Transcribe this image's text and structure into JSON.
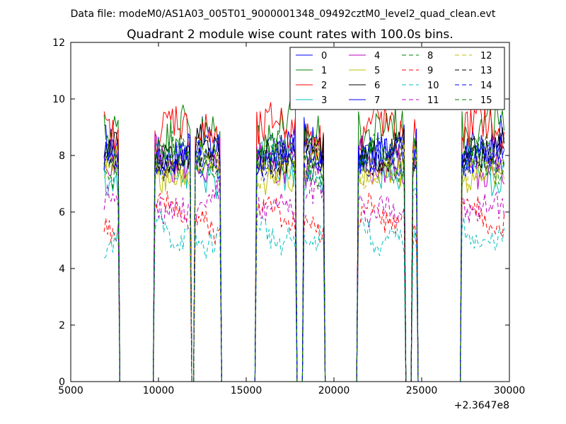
{
  "suptitle": "Data file: modeM0/AS1A03_005T01_9000001348_09492cztM0_level2_quad_clean.evt",
  "chart_data": {
    "type": "line",
    "title": "Quadrant 2 module wise count rates with 100.0s bins.",
    "xlabel": "",
    "ylabel": "",
    "x_offset_label": "+2.3647e8",
    "xlim": [
      5000,
      30000
    ],
    "ylim": [
      0,
      12
    ],
    "xticks": [
      5000,
      10000,
      15000,
      20000,
      25000,
      30000
    ],
    "yticks": [
      0,
      2,
      4,
      6,
      8,
      10,
      12
    ],
    "grid": false,
    "legend_position": "top-right",
    "segments": [
      [
        6900,
        7700
      ],
      [
        9800,
        11800
      ],
      [
        12100,
        13500
      ],
      [
        15600,
        17800
      ],
      [
        18300,
        19400
      ],
      [
        21400,
        24000
      ],
      [
        24500,
        24700
      ],
      [
        27300,
        29700
      ]
    ],
    "series": [
      {
        "name": "0",
        "color": "#0000ff",
        "dash": "solid",
        "level": 8.2,
        "amp": 0.75
      },
      {
        "name": "1",
        "color": "#008000",
        "dash": "solid",
        "level": 8.7,
        "amp": 0.8
      },
      {
        "name": "2",
        "color": "#ff0000",
        "dash": "solid",
        "level": 8.8,
        "amp": 0.75
      },
      {
        "name": "3",
        "color": "#00bfbf",
        "dash": "solid",
        "level": 7.5,
        "amp": 0.6
      },
      {
        "name": "4",
        "color": "#bf00bf",
        "dash": "solid",
        "level": 7.8,
        "amp": 0.6
      },
      {
        "name": "5",
        "color": "#bfbf00",
        "dash": "solid",
        "level": 7.6,
        "amp": 0.6
      },
      {
        "name": "6",
        "color": "#000000",
        "dash": "solid",
        "level": 8.1,
        "amp": 0.6
      },
      {
        "name": "7",
        "color": "#0000ff",
        "dash": "solid",
        "level": 7.9,
        "amp": 0.6
      },
      {
        "name": "8",
        "color": "#008000",
        "dash": "dashed",
        "level": 7.9,
        "amp": 0.55
      },
      {
        "name": "9",
        "color": "#ff0000",
        "dash": "dashed",
        "level": 5.8,
        "amp": 0.45
      },
      {
        "name": "10",
        "color": "#00bfbf",
        "dash": "dashed",
        "level": 5.2,
        "amp": 0.45
      },
      {
        "name": "11",
        "color": "#bf00bf",
        "dash": "dashed",
        "level": 6.4,
        "amp": 0.5
      },
      {
        "name": "12",
        "color": "#bfbf00",
        "dash": "dashed",
        "level": 7.7,
        "amp": 0.5
      },
      {
        "name": "13",
        "color": "#000000",
        "dash": "dashed",
        "level": 7.8,
        "amp": 0.5
      },
      {
        "name": "14",
        "color": "#0000ff",
        "dash": "dashed",
        "level": 7.6,
        "amp": 0.5
      },
      {
        "name": "15",
        "color": "#008000",
        "dash": "dashed",
        "level": 7.7,
        "amp": 0.5
      }
    ]
  }
}
